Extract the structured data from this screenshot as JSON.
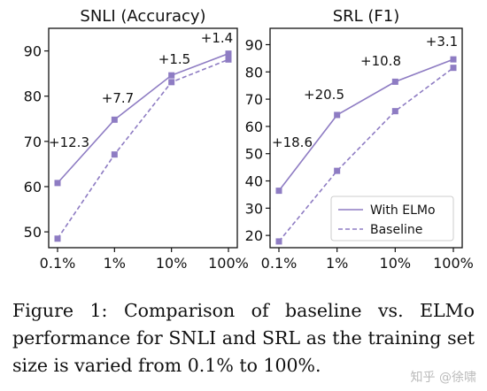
{
  "chart_data": [
    {
      "type": "line",
      "title": "SNLI (Accuracy)",
      "categories": [
        "0.1%",
        "1%",
        "10%",
        "100%"
      ],
      "yticks": [
        50,
        60,
        70,
        80,
        90
      ],
      "ylim": [
        46.5,
        95
      ],
      "series": [
        {
          "name": "With ELMo",
          "values": [
            60.8,
            74.8,
            84.6,
            89.4
          ],
          "style": "solid",
          "color": "#8e7cc3"
        },
        {
          "name": "Baseline",
          "values": [
            48.5,
            67.1,
            83.1,
            88.1
          ],
          "style": "dashed",
          "color": "#8e7cc3"
        }
      ],
      "annotations": [
        "+12.3",
        "+7.7",
        "+1.5",
        "+1.4"
      ],
      "legend": null,
      "grid": false
    },
    {
      "type": "line",
      "title": "SRL (F1)",
      "categories": [
        "0.1%",
        "1%",
        "10%",
        "100%"
      ],
      "yticks": [
        20,
        30,
        40,
        50,
        60,
        70,
        80,
        90
      ],
      "ylim": [
        15.5,
        96
      ],
      "series": [
        {
          "name": "With ELMo",
          "values": [
            36.4,
            64.2,
            76.4,
            84.6
          ],
          "style": "solid",
          "color": "#8e7cc3"
        },
        {
          "name": "Baseline",
          "values": [
            17.8,
            43.7,
            65.6,
            81.5
          ],
          "style": "dashed",
          "color": "#8e7cc3"
        }
      ],
      "annotations": [
        "+18.6",
        "+20.5",
        "+10.8",
        "+3.1"
      ],
      "legend": "lower-right",
      "grid": false
    }
  ],
  "caption": "Figure 1: Comparison of baseline vs. ELMo performance for SNLI and SRL as the training set size is varied from 0.1% to 100%.",
  "watermark": "知乎 @徐啸"
}
